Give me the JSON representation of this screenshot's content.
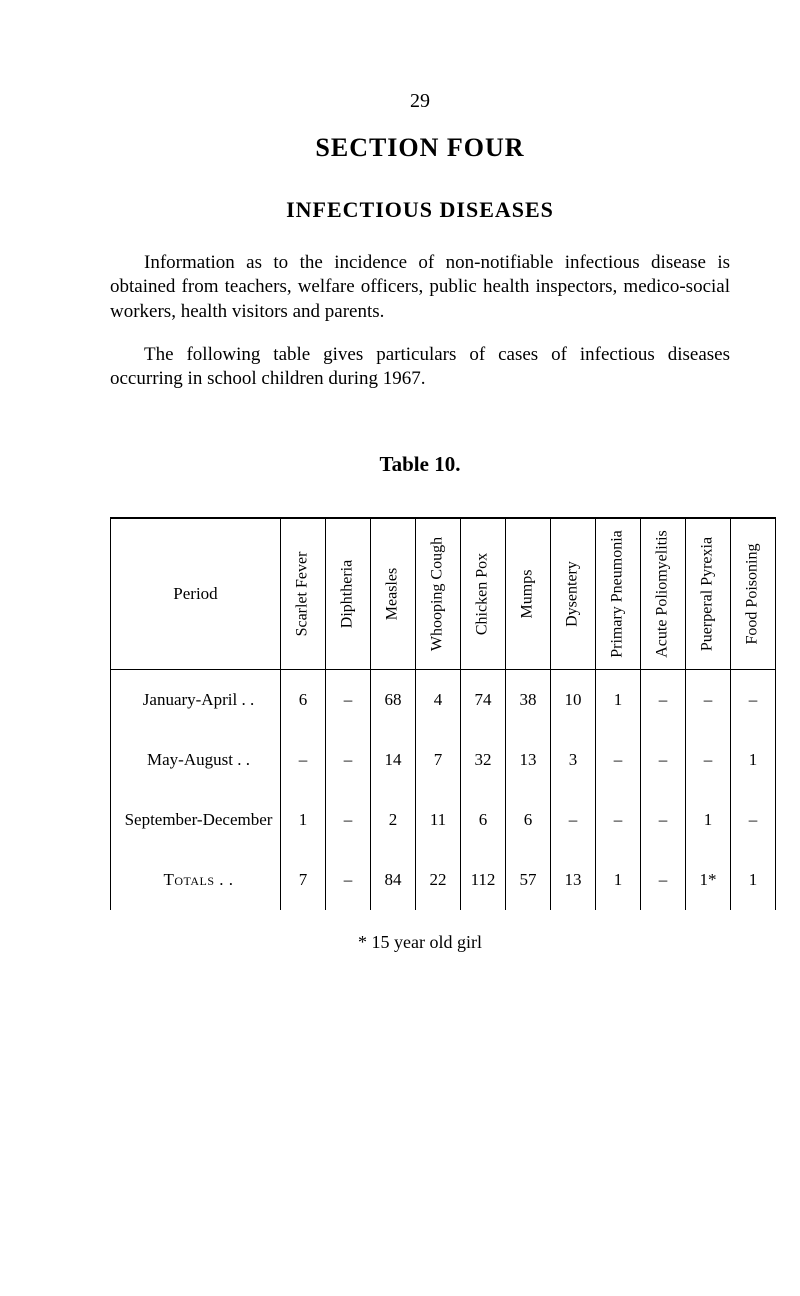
{
  "page_number": "29",
  "section_title": "SECTION FOUR",
  "sub_title": "INFECTIOUS DISEASES",
  "paragraph1": "Information as to the incidence of non-notifiable infectious disease is obtained from teachers, welfare officers, public health inspectors, medico-social workers, health visitors and parents.",
  "paragraph2": "The following table gives particulars of cases of infectious diseases occurring in school children during 1967.",
  "table_caption": "Table 10.",
  "footnote": "* 15 year old girl",
  "table": {
    "period_label": "Period",
    "columns": [
      "Scarlet\nFever",
      "Diphtheria",
      "Measles",
      "Whooping\nCough",
      "Chicken\nPox",
      "Mumps",
      "Dysentery",
      "Primary\nPneumonia",
      "Acute\nPoliomyelitis",
      "Puerperal\nPyrexia",
      "Food\nPoisoning"
    ],
    "rows": [
      {
        "label": "January-April   . .",
        "cells": [
          "6",
          "–",
          "68",
          "4",
          "74",
          "38",
          "10",
          "1",
          "–",
          "–",
          "–"
        ]
      },
      {
        "label": "May-August    . .",
        "cells": [
          "–",
          "–",
          "14",
          "7",
          "32",
          "13",
          "3",
          "–",
          "–",
          "–",
          "1"
        ]
      },
      {
        "label": "September-December",
        "cells": [
          "1",
          "–",
          "2",
          "11",
          "6",
          "6",
          "–",
          "–",
          "–",
          "1",
          "–"
        ]
      }
    ],
    "totals": {
      "label": "Totals   . .",
      "cells": [
        "7",
        "–",
        "84",
        "22",
        "112",
        "57",
        "13",
        "1",
        "–",
        "1*",
        "1"
      ]
    }
  },
  "colors": {
    "text": "#000000",
    "background": "#ffffff",
    "border": "#000000"
  }
}
